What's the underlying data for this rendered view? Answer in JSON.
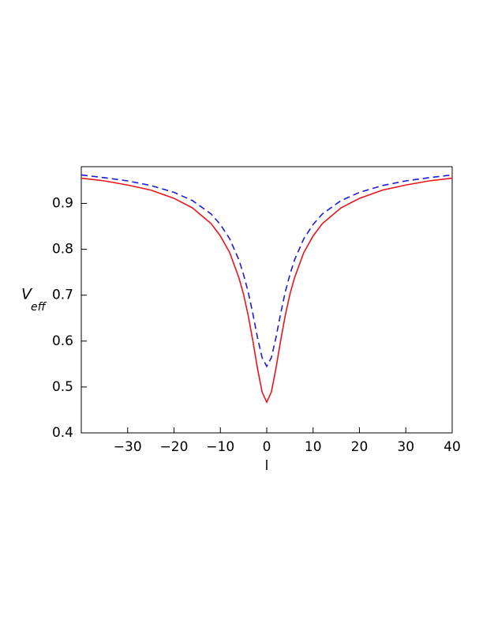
{
  "chart_data": {
    "type": "line",
    "x": [
      -40,
      -35,
      -30,
      -25,
      -20,
      -16,
      -12,
      -10,
      -8,
      -6,
      -5,
      -4,
      -3,
      -2,
      -1,
      0,
      1,
      2,
      3,
      4,
      5,
      6,
      8,
      10,
      12,
      16,
      20,
      25,
      30,
      35,
      40
    ],
    "series": [
      {
        "color": "#e8141c",
        "dash": false,
        "values": [
          0.955,
          0.949,
          0.94,
          0.929,
          0.911,
          0.89,
          0.856,
          0.829,
          0.793,
          0.738,
          0.702,
          0.656,
          0.601,
          0.541,
          0.489,
          0.467,
          0.489,
          0.541,
          0.601,
          0.656,
          0.702,
          0.738,
          0.793,
          0.829,
          0.856,
          0.89,
          0.911,
          0.929,
          0.94,
          0.949,
          0.955
        ]
      },
      {
        "color": "#1a1adc",
        "dash": true,
        "values": [
          0.962,
          0.956,
          0.949,
          0.939,
          0.924,
          0.906,
          0.877,
          0.854,
          0.823,
          0.777,
          0.745,
          0.707,
          0.66,
          0.608,
          0.564,
          0.545,
          0.564,
          0.608,
          0.66,
          0.707,
          0.745,
          0.777,
          0.823,
          0.854,
          0.877,
          0.906,
          0.924,
          0.939,
          0.949,
          0.956,
          0.962
        ]
      }
    ],
    "xlim": [
      -40,
      40
    ],
    "ylim": [
      0.4,
      0.98
    ],
    "xticks": [
      {
        "value": -30,
        "label": "−30"
      },
      {
        "value": -20,
        "label": "−20"
      },
      {
        "value": -10,
        "label": "−10"
      },
      0,
      10,
      20,
      30,
      40
    ],
    "yticks": [
      0.4,
      0.5,
      0.6,
      0.7,
      0.8,
      0.9
    ],
    "x_label": "l",
    "y_label": "V",
    "y_label_sub": "eff"
  }
}
